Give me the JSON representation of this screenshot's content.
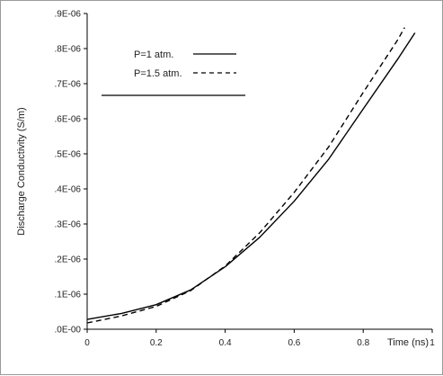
{
  "chart_data": {
    "type": "line",
    "title": "",
    "xlabel": "Time (ns)",
    "ylabel": "Discharge Conductivity (S/m)",
    "xlim": [
      0,
      1
    ],
    "ylim": [
      0,
      9
    ],
    "x_ticks": [
      0,
      0.2,
      0.4,
      0.6,
      0.8,
      1
    ],
    "x_tick_labels": [
      "0",
      "0.2",
      "0.4",
      "0.6",
      "0.8",
      "1"
    ],
    "y_ticks": [
      0,
      1,
      2,
      3,
      4,
      5,
      6,
      7,
      8,
      9
    ],
    "y_tick_labels": [
      ".0E-00",
      ".1E-06",
      ".2E-06",
      ".3E-06",
      ".4E-06",
      ".5E-06",
      ".6E-06",
      ".7E-06",
      ".8E-06",
      ".9E-06"
    ],
    "grid": false,
    "legend_position": "top-left",
    "series": [
      {
        "name": "P=1 atm.",
        "style": "solid",
        "color": "#000000",
        "x": [
          0,
          0.1,
          0.2,
          0.3,
          0.4,
          0.5,
          0.6,
          0.7,
          0.8,
          0.9,
          0.95
        ],
        "y": [
          0.28,
          0.45,
          0.7,
          1.12,
          1.78,
          2.62,
          3.65,
          4.85,
          6.28,
          7.7,
          8.45
        ]
      },
      {
        "name": "P=1.5 atm.",
        "style": "dashed",
        "color": "#000000",
        "x": [
          0,
          0.1,
          0.2,
          0.3,
          0.4,
          0.5,
          0.6,
          0.7,
          0.8,
          0.9,
          0.92
        ],
        "y": [
          0.18,
          0.38,
          0.65,
          1.1,
          1.8,
          2.75,
          3.9,
          5.2,
          6.75,
          8.25,
          8.6
        ]
      }
    ]
  }
}
